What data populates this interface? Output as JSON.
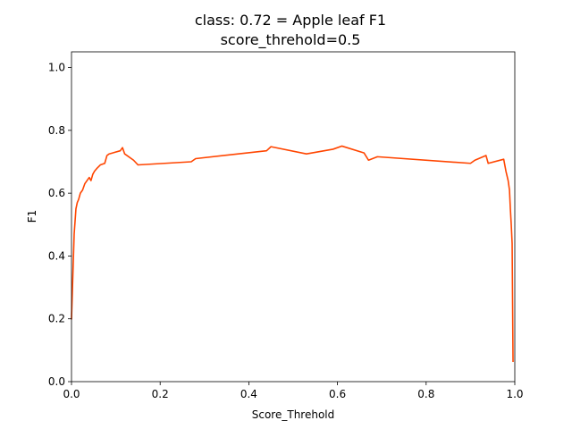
{
  "chart_data": {
    "type": "line",
    "title": "class: 0.72 = Apple leaf F1",
    "subtitle": "score_threhold=0.5",
    "xlabel": "Score_Threhold",
    "ylabel": "F1",
    "xlim": [
      0,
      1
    ],
    "ylim": [
      0,
      1.05
    ],
    "xticks": [
      0,
      0.2,
      0.4,
      0.6,
      0.8,
      1
    ],
    "xtick_labels": [
      "0.0",
      "0.2",
      "0.4",
      "0.6",
      "0.8",
      "1.0"
    ],
    "yticks": [
      0,
      0.2,
      0.4,
      0.6,
      0.8,
      1
    ],
    "ytick_labels": [
      "0.0",
      "0.2",
      "0.4",
      "0.6",
      "0.8",
      "1.0"
    ],
    "grid": false,
    "legend": "none",
    "series": [
      {
        "color": "#ff4500",
        "x": [
          0.0,
          0.002,
          0.004,
          0.006,
          0.008,
          0.01,
          0.013,
          0.016,
          0.02,
          0.025,
          0.03,
          0.035,
          0.04,
          0.044,
          0.048,
          0.052,
          0.058,
          0.065,
          0.075,
          0.08,
          0.085,
          0.11,
          0.115,
          0.12,
          0.14,
          0.15,
          0.27,
          0.28,
          0.44,
          0.45,
          0.53,
          0.59,
          0.61,
          0.66,
          0.67,
          0.69,
          0.9,
          0.91,
          0.935,
          0.94,
          0.975,
          0.98,
          0.985,
          0.988,
          0.99,
          0.992,
          0.994,
          0.996
        ],
        "y": [
          0.2,
          0.29,
          0.38,
          0.47,
          0.51,
          0.55,
          0.57,
          0.58,
          0.6,
          0.61,
          0.63,
          0.64,
          0.65,
          0.64,
          0.66,
          0.67,
          0.68,
          0.69,
          0.695,
          0.72,
          0.725,
          0.735,
          0.745,
          0.725,
          0.705,
          0.69,
          0.7,
          0.71,
          0.735,
          0.748,
          0.725,
          0.74,
          0.75,
          0.728,
          0.705,
          0.716,
          0.695,
          0.705,
          0.72,
          0.695,
          0.708,
          0.67,
          0.64,
          0.61,
          0.55,
          0.5,
          0.44,
          0.065
        ]
      }
    ]
  }
}
